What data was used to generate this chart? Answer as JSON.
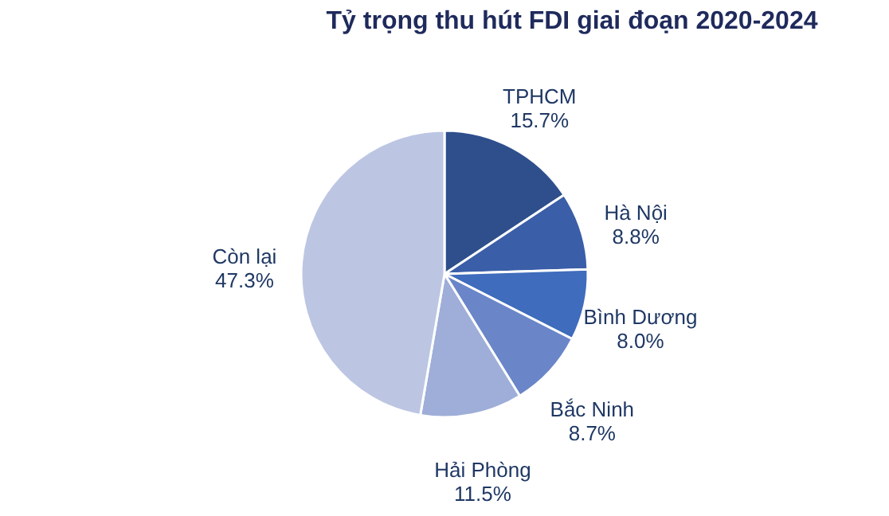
{
  "chart_data": {
    "type": "pie",
    "title": "Tỷ trọng thu hút FDI giai đoạn 2020-2024",
    "categories": [
      "TPHCM",
      "Hà Nội",
      "Bình Dương",
      "Bắc Ninh",
      "Hải Phòng",
      "Còn lại"
    ],
    "values": [
      15.7,
      8.8,
      8.0,
      8.7,
      11.5,
      47.3
    ],
    "value_labels": [
      "15.7%",
      "8.8%",
      "8.0%",
      "8.7%",
      "11.5%",
      "47.3%"
    ],
    "colors": [
      "#2e4f8c",
      "#3a5ea8",
      "#3f6cbc",
      "#6a86c8",
      "#9eaed8",
      "#bcc6e3"
    ],
    "legend": false
  }
}
